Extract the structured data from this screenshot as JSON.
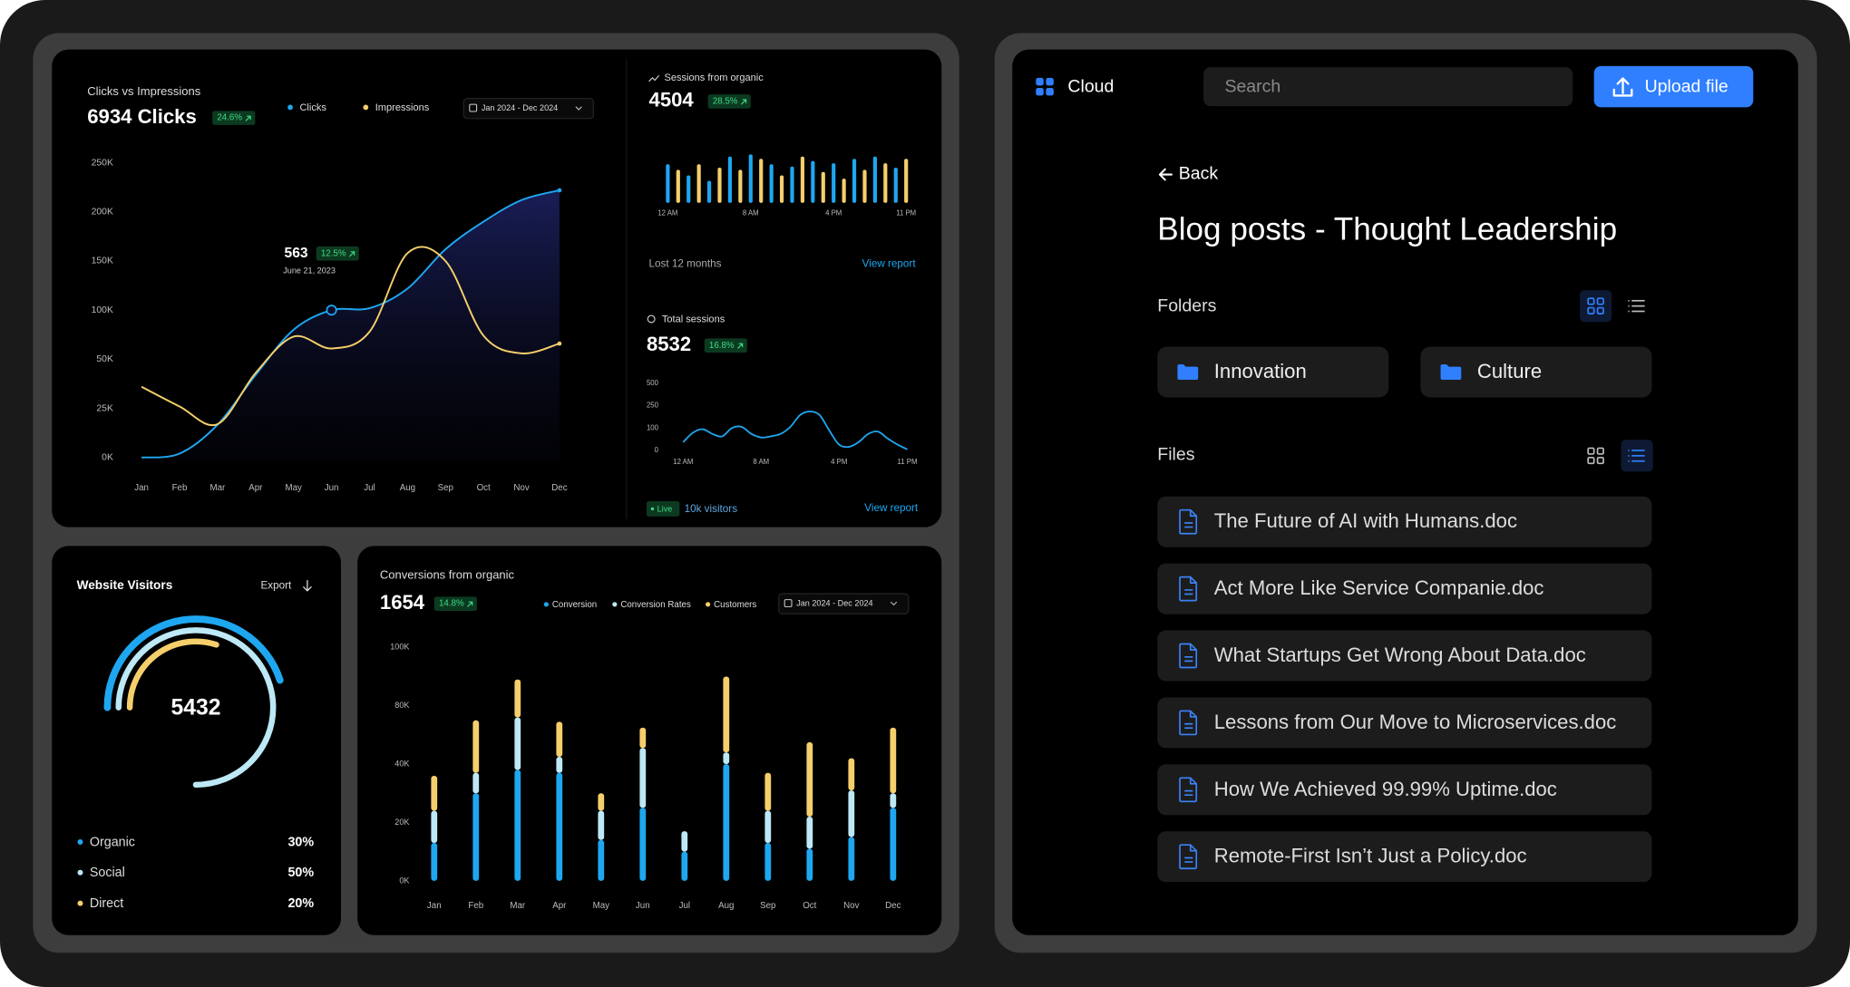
{
  "chart_data": [
    {
      "type": "line",
      "title": "Clicks vs Impressions",
      "headline": "6934 Clicks",
      "change": "24.6%",
      "date_range": "Jan 2024 - Dec 2024",
      "categories": [
        "Jan",
        "Feb",
        "Mar",
        "Apr",
        "May",
        "Jun",
        "Jul",
        "Aug",
        "Sep",
        "Oct",
        "Nov",
        "Dec"
      ],
      "series": [
        {
          "name": "Clicks",
          "color": "#1ea7f0",
          "values": [
            0,
            2000,
            16700,
            42000,
            80000,
            100000,
            102000,
            122000,
            162000,
            190000,
            212000,
            222000
          ]
        },
        {
          "name": "Impressions",
          "color": "#f5cf6b",
          "values": [
            36000,
            26000,
            17000,
            43000,
            73000,
            61000,
            78000,
            158000,
            150000,
            74000,
            56000,
            66000
          ]
        }
      ],
      "ylim": [
        0,
        250000
      ],
      "yticks": [
        {
          "value": 0,
          "label": "0K"
        },
        {
          "value": 25000,
          "label": "25K"
        },
        {
          "value": 50000,
          "label": "50K"
        },
        {
          "value": 100000,
          "label": "100K"
        },
        {
          "value": 150000,
          "label": "150K"
        },
        {
          "value": 200000,
          "label": "200K"
        },
        {
          "value": 250000,
          "label": "250K"
        }
      ],
      "annotation": {
        "value": "563",
        "change": "12.5%",
        "date": "June 21, 2023"
      }
    },
    {
      "type": "bar",
      "title": "Sessions from organic",
      "headline": "4504",
      "change": "28.5%",
      "x": [
        0,
        1,
        2,
        3,
        4,
        5,
        6,
        7,
        8,
        9,
        10,
        11,
        12,
        13,
        14,
        15,
        16,
        17,
        18,
        19,
        20,
        21,
        22,
        23
      ],
      "values": [
        35,
        30,
        25,
        35,
        20,
        32,
        42,
        30,
        44,
        40,
        35,
        25,
        33,
        42,
        38,
        28,
        36,
        22,
        40,
        30,
        42,
        36,
        32,
        40
      ],
      "colors": [
        "#1ea7f0",
        "#f5cf6b",
        "#1ea7f0",
        "#f5cf6b",
        "#1ea7f0",
        "#f5cf6b",
        "#1ea7f0",
        "#f5cf6b",
        "#1ea7f0",
        "#f5cf6b",
        "#1ea7f0",
        "#f5cf6b",
        "#1ea7f0",
        "#f5cf6b",
        "#1ea7f0",
        "#f5cf6b",
        "#1ea7f0",
        "#f5cf6b",
        "#1ea7f0",
        "#f5cf6b",
        "#1ea7f0",
        "#f5cf6b",
        "#1ea7f0",
        "#f5cf6b"
      ],
      "xlim": [
        0,
        23
      ],
      "ylim": [
        0,
        45
      ],
      "xticks": [
        {
          "value": 0,
          "label": "12 AM"
        },
        {
          "value": 8,
          "label": "8 AM"
        },
        {
          "value": 16,
          "label": "4 PM"
        },
        {
          "value": 23,
          "label": "11 PM"
        }
      ],
      "footer": "Lost 12 months",
      "link": "View report"
    },
    {
      "type": "line",
      "title": "Total sessions",
      "headline": "8532",
      "change": "16.8%",
      "color": "#1ea7f0",
      "x": [
        0,
        1,
        2,
        3,
        4,
        5,
        6,
        7,
        8,
        9,
        10,
        11,
        12,
        13,
        14,
        15,
        16,
        17,
        18,
        19,
        20,
        21,
        22,
        23
      ],
      "values": [
        37,
        79,
        95,
        74,
        63,
        100,
        108,
        74,
        58,
        63,
        74,
        108,
        187,
        211,
        187,
        89,
        26,
        16,
        37,
        74,
        84,
        53,
        26,
        5
      ],
      "xlim": [
        0,
        23
      ],
      "ylim": [
        0,
        500
      ],
      "yticks": [
        0,
        100,
        250,
        500
      ],
      "xticks": [
        {
          "value": 0,
          "label": "12 AM"
        },
        {
          "value": 8,
          "label": "8 AM"
        },
        {
          "value": 16,
          "label": "4 PM"
        },
        {
          "value": 23,
          "label": "11 PM"
        }
      ],
      "status": "Live",
      "visitors": "10k visitors",
      "link": "View report"
    },
    {
      "type": "pie",
      "title": "Website Visitors",
      "action": "Export",
      "center_label": "5432",
      "categories": [
        "Organic",
        "Social",
        "Direct"
      ],
      "values": [
        30,
        50,
        20
      ],
      "value_labels": [
        "30%",
        "50%",
        "20%"
      ],
      "colors": [
        "#1ea7f0",
        "#bde8f5",
        "#f5cf6b"
      ]
    },
    {
      "type": "bar",
      "stacked": true,
      "title": "Conversions from organic",
      "headline": "1654",
      "change": "14.8%",
      "date_range": "Jan 2024 - Dec 2024",
      "categories": [
        "Jan",
        "Feb",
        "Mar",
        "Apr",
        "May",
        "Jun",
        "Jul",
        "Aug",
        "Sep",
        "Oct",
        "Nov",
        "Dec"
      ],
      "series": [
        {
          "name": "Conversion",
          "color": "#1ea7f0",
          "values": [
            13000,
            30000,
            38000,
            37000,
            14000,
            25000,
            10000,
            40000,
            13000,
            11000,
            15000,
            25000
          ]
        },
        {
          "name": "Conversion Rates",
          "color": "#bde8f5",
          "values": [
            11000,
            7000,
            34000,
            8000,
            10000,
            26000,
            7000,
            8000,
            11000,
            11000,
            16000,
            5000
          ]
        },
        {
          "name": "Customers",
          "color": "#f5cf6b",
          "values": [
            12000,
            33000,
            17000,
            24000,
            6000,
            14000,
            0,
            42000,
            13000,
            33000,
            13000,
            35000
          ]
        }
      ],
      "ylim": [
        0,
        100000
      ],
      "yticks": [
        {
          "value": 0,
          "label": "0K"
        },
        {
          "value": 20000,
          "label": "20K"
        },
        {
          "value": 40000,
          "label": "40K"
        },
        {
          "value": 80000,
          "label": "80K"
        },
        {
          "value": 100000,
          "label": "100K"
        }
      ]
    }
  ],
  "file_manager": {
    "brand": "Cloud",
    "search_placeholder": "Search",
    "upload_button": "Upload file",
    "back": "Back",
    "title": "Blog posts - Thought Leadership",
    "folders_heading": "Folders",
    "folders": [
      "Innovation",
      "Culture"
    ],
    "files_heading": "Files",
    "files": [
      "The Future of AI with Humans.doc",
      "Act More Like Service Companie.doc",
      "What Startups Get Wrong About Data.doc",
      "Lessons from Our Move to Microservices.doc",
      "How We Achieved 99.99% Uptime.doc",
      "Remote-First Isn’t Just a Policy.doc"
    ]
  }
}
